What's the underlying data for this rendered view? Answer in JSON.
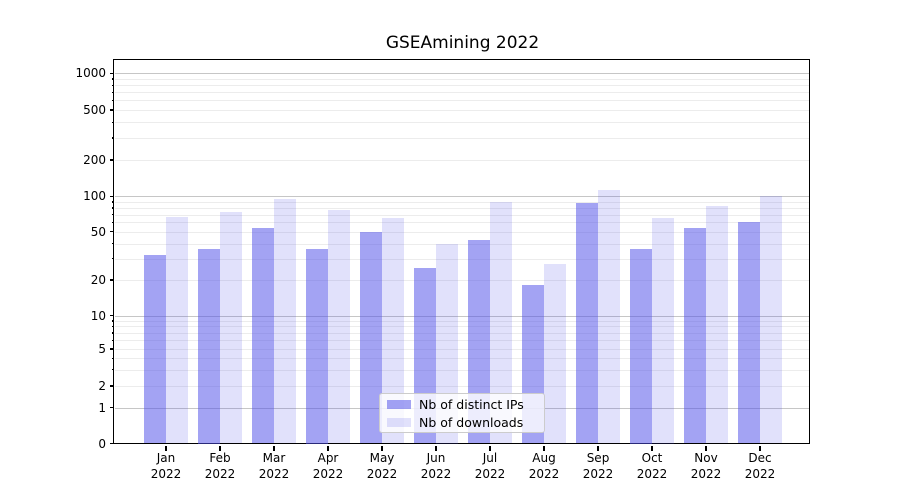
{
  "chart_data": {
    "type": "bar",
    "title": "GSEAmining 2022",
    "categories": [
      "Jan 2022",
      "Feb 2022",
      "Mar 2022",
      "Apr 2022",
      "May 2022",
      "Jun 2022",
      "Jul 2022",
      "Aug 2022",
      "Sep 2022",
      "Oct 2022",
      "Nov 2022",
      "Dec 2022"
    ],
    "x_tick_months": [
      "Jan",
      "Feb",
      "Mar",
      "Apr",
      "May",
      "Jun",
      "Jul",
      "Aug",
      "Sep",
      "Oct",
      "Nov",
      "Dec"
    ],
    "x_tick_year": "2022",
    "series": [
      {
        "name": "Nb of distinct IPs",
        "color": "rgba(78,78,232,0.52)",
        "values": [
          32,
          36,
          54,
          36,
          50,
          25,
          43,
          18,
          87,
          36,
          54,
          60
        ]
      },
      {
        "name": "Nb of downloads",
        "color": "rgba(78,78,232,0.17)",
        "values": [
          67,
          74,
          95,
          77,
          65,
          40,
          90,
          27,
          112,
          66,
          83,
          101
        ]
      }
    ],
    "yscale": "symlog",
    "ytick_values": [
      0,
      1,
      2,
      5,
      10,
      20,
      50,
      100,
      200,
      500,
      1000
    ],
    "ytick_labels": [
      "0",
      "1",
      "2",
      "5",
      "10",
      "20",
      "50",
      "100",
      "200",
      "500",
      "1000"
    ],
    "grid": {
      "major_values": [
        1,
        10,
        100,
        1000
      ],
      "minor_values": [
        2,
        3,
        4,
        5,
        6,
        7,
        8,
        9,
        20,
        30,
        40,
        50,
        60,
        70,
        80,
        90,
        200,
        300,
        400,
        500,
        600,
        700,
        800,
        900
      ]
    },
    "legend_position": "lower center",
    "ylim": [
      0,
      1400
    ]
  },
  "colors": {
    "bar_base": "#4e4ee8",
    "bar_distinct_ips": "rgba(78,78,232,0.52)",
    "bar_downloads": "rgba(78,78,232,0.17)",
    "grid_major": "#c6c6c6",
    "grid_minor": "#ececec",
    "axis": "#000000",
    "legend_border": "#cccccc",
    "legend_background": "rgba(255,255,255,0.8)"
  }
}
